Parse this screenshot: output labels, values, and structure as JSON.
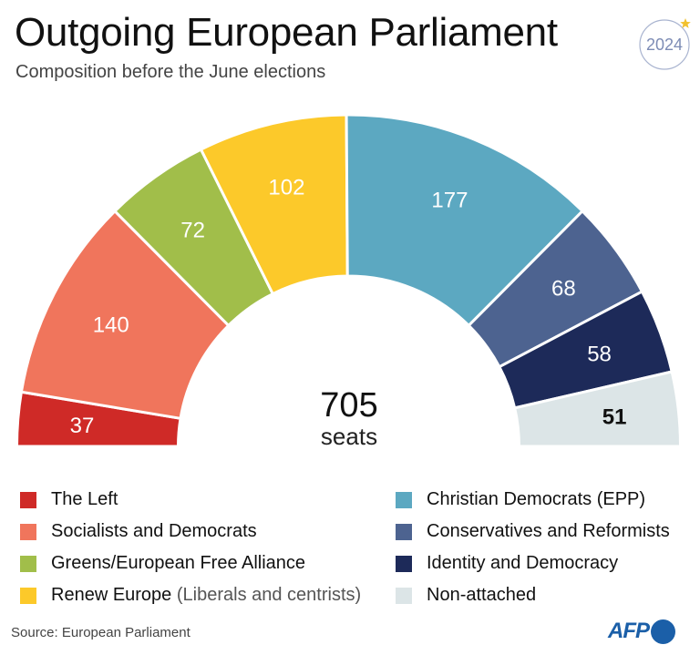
{
  "header": {
    "title": "Outgoing European Parliament",
    "subtitle": "Composition before the June elections",
    "badge_year": "2024",
    "badge_star_color": "#f2c12e",
    "badge_ring_color": "#a9b4d0",
    "badge_text_color": "#7d8cb5"
  },
  "chart_data": {
    "type": "pie",
    "variant": "semicircle-parliament",
    "title": "Outgoing European Parliament",
    "subtitle": "Composition before the June elections",
    "total": 705,
    "total_label": "705",
    "total_unit": "seats",
    "order": "left-to-right",
    "slices": [
      {
        "name": "The Left",
        "value": 37,
        "label": "37",
        "color": "#cf2a27",
        "label_color": "#ffffff"
      },
      {
        "name": "Socialists and Democrats",
        "value": 140,
        "label": "140",
        "color": "#f0755c",
        "label_color": "#ffffff"
      },
      {
        "name": "Greens/European Free Alliance",
        "value": 72,
        "label": "72",
        "color": "#a1be4a",
        "label_color": "#ffffff"
      },
      {
        "name": "Renew Europe",
        "value": 102,
        "label": "102",
        "color": "#fcc92a",
        "label_color": "#ffffff"
      },
      {
        "name": "Christian Democrats (EPP)",
        "value": 177,
        "label": "177",
        "color": "#5ca8c1",
        "label_color": "#ffffff"
      },
      {
        "name": "Conservatives and Reformists",
        "value": 68,
        "label": "68",
        "color": "#4d6390",
        "label_color": "#ffffff"
      },
      {
        "name": "Identity and Democracy",
        "value": 58,
        "label": "58",
        "color": "#1d2a59",
        "label_color": "#ffffff"
      },
      {
        "name": "Non-attached",
        "value": 51,
        "label": "51",
        "color": "#dce5e7",
        "label_color": "#111111"
      }
    ]
  },
  "legend": {
    "left": [
      {
        "label": "The Left",
        "note": "",
        "color": "#cf2a27"
      },
      {
        "label": "Socialists and Democrats",
        "note": "",
        "color": "#f0755c"
      },
      {
        "label": "Greens/European Free Alliance",
        "note": "",
        "color": "#a1be4a"
      },
      {
        "label": "Renew Europe",
        "note": " (Liberals and centrists)",
        "color": "#fcc92a"
      }
    ],
    "right": [
      {
        "label": "Christian Democrats (EPP)",
        "note": "",
        "color": "#5ca8c1"
      },
      {
        "label": "Conservatives and Reformists",
        "note": "",
        "color": "#4d6390"
      },
      {
        "label": "Identity and Democracy",
        "note": "",
        "color": "#1d2a59"
      },
      {
        "label": "Non-attached",
        "note": "",
        "color": "#dce5e7"
      }
    ]
  },
  "footer": {
    "source": "Source: European Parliament",
    "logo_text": "AFP",
    "logo_color": "#1b5fa8"
  }
}
